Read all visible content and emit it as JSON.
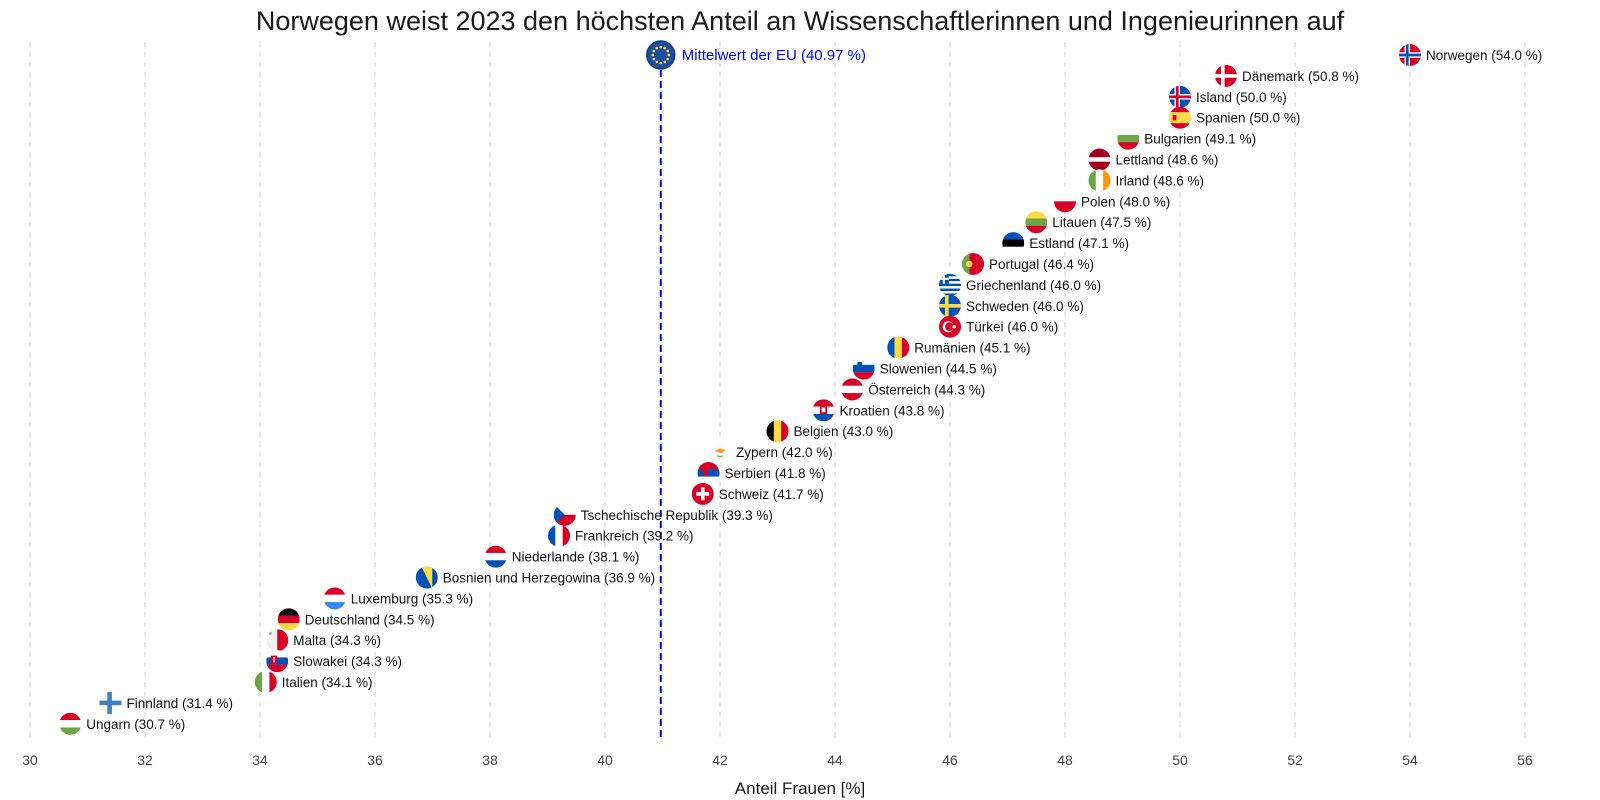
{
  "chart_data": {
    "type": "scatter",
    "title": "Norwegen weist 2023 den höchsten Anteil an Wissenschaftlerinnen und Ingenieurinnen auf",
    "xlabel": "Anteil Frauen [%]",
    "ylabel": "",
    "xlim": [
      30,
      56.5
    ],
    "xticks": [
      30,
      32,
      34,
      36,
      38,
      40,
      42,
      44,
      46,
      48,
      50,
      52,
      54,
      56
    ],
    "grid": "vertical-dashed",
    "colors": {
      "reference_line": "#0000ee",
      "grid": "#cfcfcf",
      "text": "#111111"
    },
    "reference": {
      "label": "Mittelwert der EU (40.97 %)",
      "value": 40.97,
      "icon": "eu-flag-icon"
    },
    "points": [
      {
        "country": "Norwegen",
        "label": "Norwegen (54.0 %)",
        "value": 54.0
      },
      {
        "country": "Dänemark",
        "label": "Dänemark (50.8 %)",
        "value": 50.8
      },
      {
        "country": "Island",
        "label": "Island (50.0 %)",
        "value": 50.0
      },
      {
        "country": "Spanien",
        "label": "Spanien (50.0 %)",
        "value": 50.0
      },
      {
        "country": "Bulgarien",
        "label": "Bulgarien (49.1 %)",
        "value": 49.1
      },
      {
        "country": "Lettland",
        "label": "Lettland (48.6 %)",
        "value": 48.6
      },
      {
        "country": "Irland",
        "label": "Irland (48.6 %)",
        "value": 48.6
      },
      {
        "country": "Polen",
        "label": "Polen (48.0 %)",
        "value": 48.0
      },
      {
        "country": "Litauen",
        "label": "Litauen (47.5 %)",
        "value": 47.5
      },
      {
        "country": "Estland",
        "label": "Estland (47.1 %)",
        "value": 47.1
      },
      {
        "country": "Portugal",
        "label": "Portugal (46.4 %)",
        "value": 46.4
      },
      {
        "country": "Griechenland",
        "label": "Griechenland (46.0 %)",
        "value": 46.0
      },
      {
        "country": "Schweden",
        "label": "Schweden (46.0 %)",
        "value": 46.0
      },
      {
        "country": "Türkei",
        "label": "Türkei (46.0 %)",
        "value": 46.0
      },
      {
        "country": "Rumänien",
        "label": "Rumänien (45.1 %)",
        "value": 45.1
      },
      {
        "country": "Slowenien",
        "label": "Slowenien (44.5 %)",
        "value": 44.5
      },
      {
        "country": "Österreich",
        "label": "Österreich (44.3 %)",
        "value": 44.3
      },
      {
        "country": "Kroatien",
        "label": "Kroatien (43.8 %)",
        "value": 43.8
      },
      {
        "country": "Belgien",
        "label": "Belgien (43.0 %)",
        "value": 43.0
      },
      {
        "country": "Zypern",
        "label": "Zypern (42.0 %)",
        "value": 42.0
      },
      {
        "country": "Serbien",
        "label": "Serbien (41.8 %)",
        "value": 41.8
      },
      {
        "country": "Schweiz",
        "label": "Schweiz (41.7 %)",
        "value": 41.7
      },
      {
        "country": "Tschechische Republik",
        "label": "Tschechische Republik (39.3 %)",
        "value": 39.3
      },
      {
        "country": "Frankreich",
        "label": "Frankreich (39.2 %)",
        "value": 39.2
      },
      {
        "country": "Niederlande",
        "label": "Niederlande (38.1 %)",
        "value": 38.1
      },
      {
        "country": "Bosnien und Herzegowina",
        "label": "Bosnien und Herzegowina (36.9 %)",
        "value": 36.9
      },
      {
        "country": "Luxemburg",
        "label": "Luxemburg (35.3 %)",
        "value": 35.3
      },
      {
        "country": "Deutschland",
        "label": "Deutschland (34.5 %)",
        "value": 34.5
      },
      {
        "country": "Malta",
        "label": "Malta (34.3 %)",
        "value": 34.3
      },
      {
        "country": "Slowakei",
        "label": "Slowakei (34.3 %)",
        "value": 34.3
      },
      {
        "country": "Italien",
        "label": "Italien (34.1 %)",
        "value": 34.1
      },
      {
        "country": "Finnland",
        "label": "Finnland (31.4 %)",
        "value": 31.4
      },
      {
        "country": "Ungarn",
        "label": "Ungarn (30.7 %)",
        "value": 30.7
      }
    ]
  }
}
